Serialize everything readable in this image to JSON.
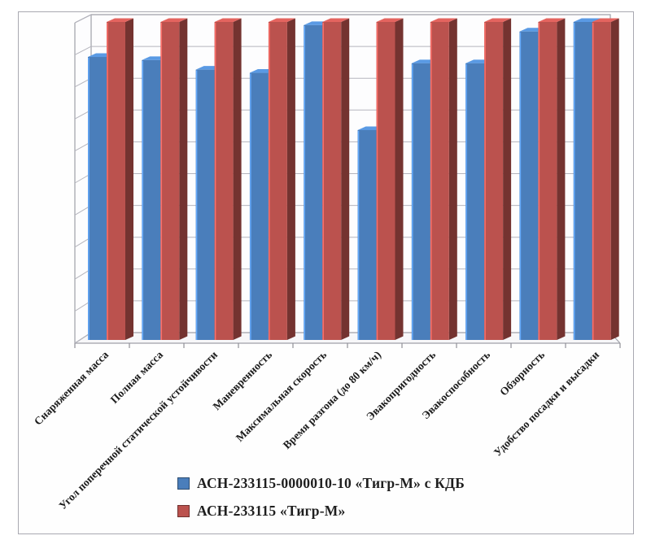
{
  "chart_data": {
    "type": "bar",
    "variant": "3d-clustered-column",
    "title": "",
    "xlabel": "",
    "ylabel": "",
    "categories": [
      "Снаряженная масса",
      "Полная масса",
      "Угол поперечной статической устойчивости",
      "Маневренность",
      "Максимальная скорость",
      "Время разгона (до 80 км/ч)",
      "Эвакопригодность",
      "Эвакоспособность",
      "Обзорность",
      "Удобство посадки и высадки"
    ],
    "series": [
      {
        "name": "АСН-233115-0000010-10 «Тигр-М» с КДБ",
        "color": "#4a7ebb",
        "values": [
          8.9,
          8.8,
          8.5,
          8.4,
          9.9,
          6.6,
          8.7,
          8.7,
          9.7,
          10
        ]
      },
      {
        "name": "АСН-233115 «Тигр-М»",
        "color": "#bb524e",
        "values": [
          10,
          10,
          10,
          10,
          10,
          10,
          10,
          10,
          10,
          10
        ]
      }
    ],
    "ylim": [
      0,
      10
    ],
    "gridline_step": 1,
    "value_axis_labels_visible": false,
    "grid": true,
    "legend_position": "bottom"
  }
}
